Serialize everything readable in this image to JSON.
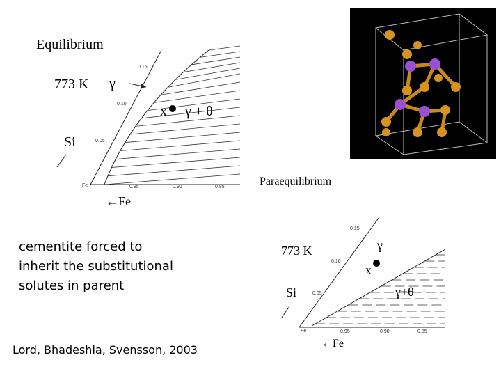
{
  "equilibrium": {
    "title": "Equilibrium",
    "temperature": "773 K",
    "gamma": "γ",
    "point": "x",
    "two_phase": "γ + θ",
    "si": "Si",
    "fe_axis": "←Fe",
    "fe_corner": "Fe",
    "si_ticks": [
      "0.05",
      "0.10",
      "0.15"
    ],
    "fe_ticks": [
      "0.95",
      "0.90",
      "0.85"
    ]
  },
  "paraequilibrium": {
    "title": "Paraequilibrium",
    "temperature": "773 K",
    "gamma": "γ",
    "point": "x",
    "two_phase": "γ+θ",
    "si": "Si",
    "fe_axis": "←Fe",
    "fe_corner": "Fe",
    "si_ticks": [
      "0.05",
      "0.10",
      "0.15"
    ],
    "fe_ticks": [
      "0.95",
      "0.90",
      "0.85"
    ]
  },
  "caption": [
    "cementite forced to",
    "inherit the substitutional",
    "solutes in parent"
  ],
  "citation": "Lord, Bhadeshia, Svensson, 2003"
}
